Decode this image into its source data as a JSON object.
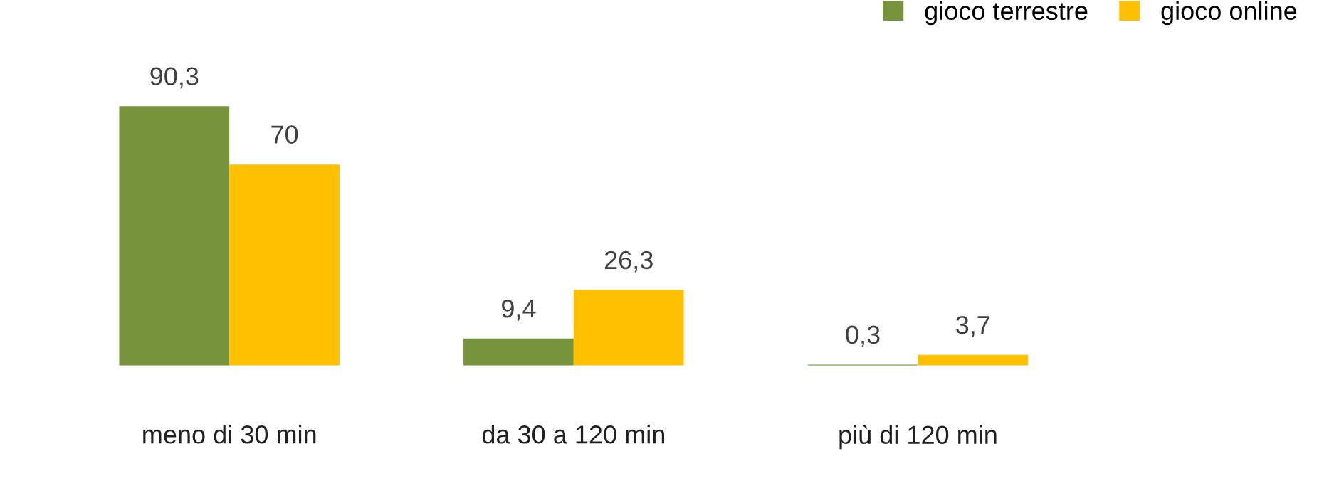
{
  "chart_data": {
    "type": "bar",
    "categories": [
      "meno di 30 min",
      "da 30 a 120 min",
      "più di 120 min"
    ],
    "series": [
      {
        "name": "gioco terrestre",
        "color": "#77933c",
        "values": [
          90.3,
          9.4,
          0.3
        ],
        "value_labels": [
          "90,3",
          "9,4",
          "0,3"
        ]
      },
      {
        "name": "gioco online",
        "color": "#ffc000",
        "values": [
          70,
          26.3,
          3.7
        ],
        "value_labels": [
          "70",
          "26,3",
          "3,7"
        ]
      }
    ],
    "legend": "top right",
    "grid": false
  }
}
